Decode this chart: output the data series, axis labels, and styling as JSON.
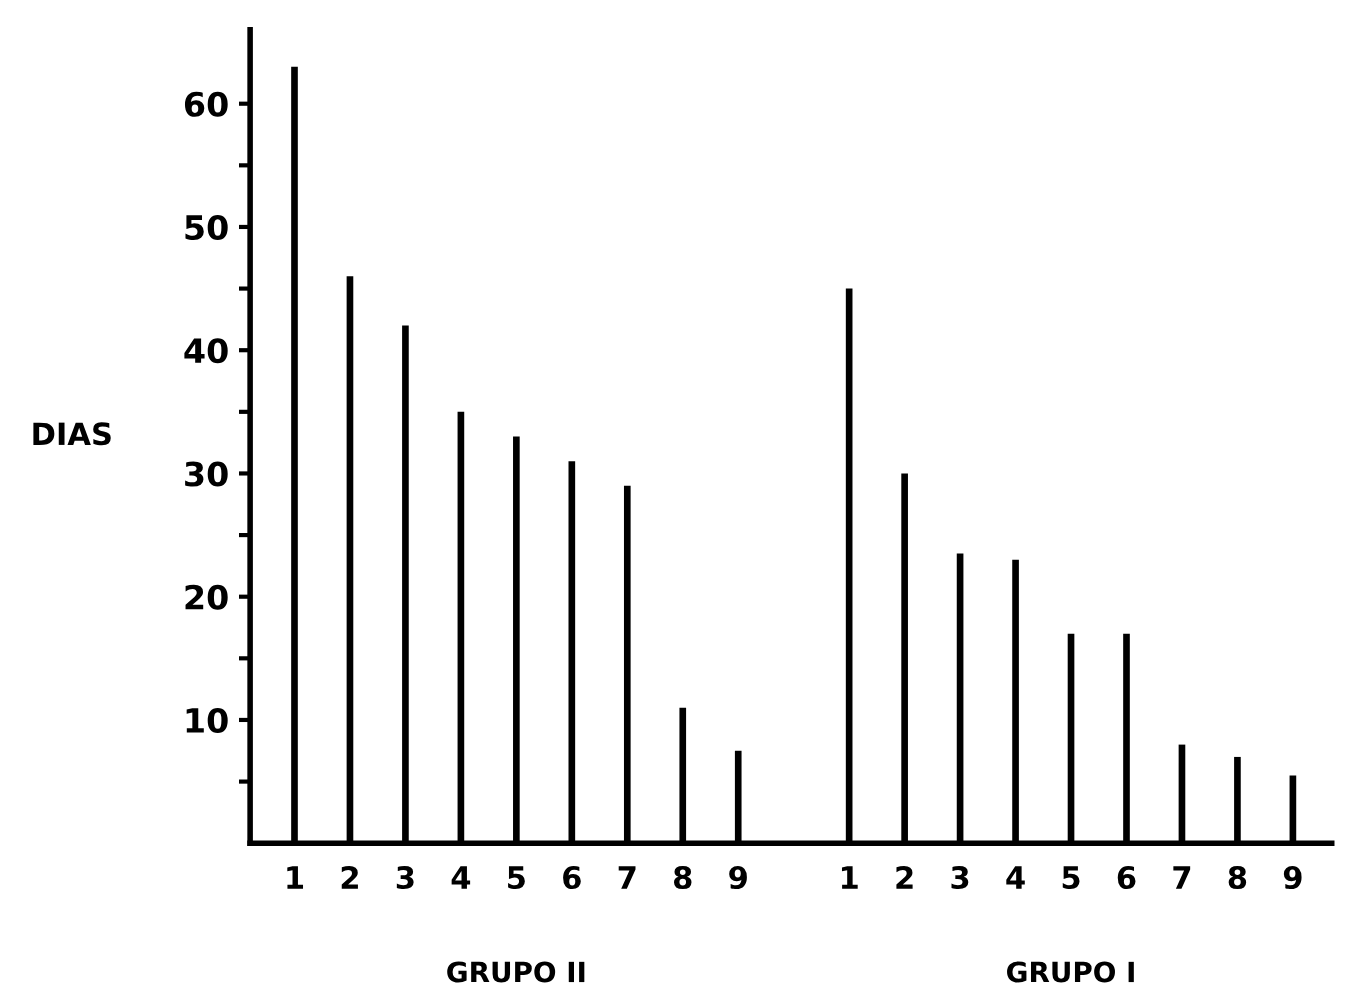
{
  "chart_data": {
    "type": "bar",
    "ylabel": "DIAS",
    "categories": [
      "1",
      "2",
      "3",
      "4",
      "5",
      "6",
      "7",
      "8",
      "9",
      null,
      "1",
      "2",
      "3",
      "4",
      "5",
      "6",
      "7",
      "8",
      "9"
    ],
    "values": [
      63,
      46,
      42,
      35,
      33,
      31,
      29,
      11,
      7.5,
      null,
      45,
      30,
      23.5,
      23,
      17,
      17,
      8,
      7,
      5.5
    ],
    "color": "#000000",
    "ylim": [
      0,
      66
    ],
    "yticks": [
      {
        "value": 5,
        "label": null
      },
      10,
      {
        "value": 15,
        "label": null
      },
      20,
      {
        "value": 25,
        "label": null
      },
      30,
      {
        "value": 35,
        "label": null
      },
      40,
      {
        "value": 45,
        "label": null
      },
      50,
      {
        "value": 55,
        "label": null
      },
      60
    ],
    "grid": false,
    "annotations": [
      "GRUPO II",
      "GRUPO I"
    ]
  }
}
